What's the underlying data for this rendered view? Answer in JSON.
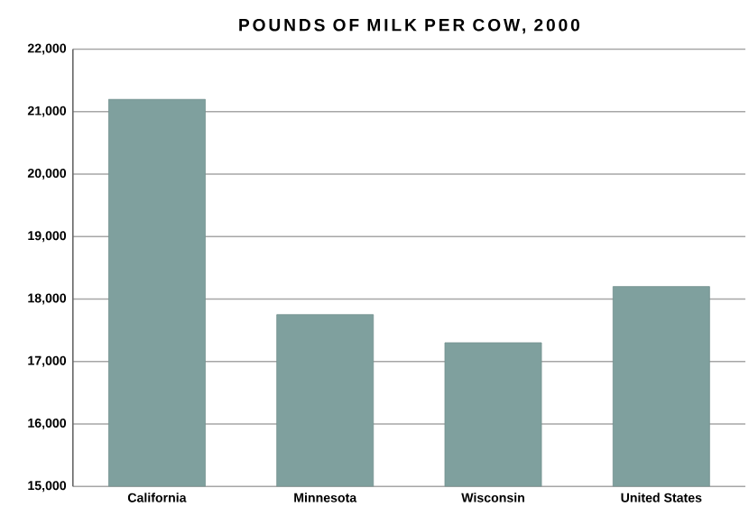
{
  "chart_data": {
    "type": "bar",
    "title": "POUNDS OF MILK PER COW, 2000",
    "categories": [
      "California",
      "Minnesota",
      "Wisconsin",
      "United States"
    ],
    "values": [
      21200,
      17750,
      17300,
      18200
    ],
    "color": "#7fa09e",
    "ylim": [
      15000,
      22000
    ],
    "yticks": [
      {
        "value": 15000,
        "label": "15,000"
      },
      {
        "value": 16000,
        "label": "16,000"
      },
      {
        "value": 17000,
        "label": "17,000"
      },
      {
        "value": 18000,
        "label": "18,000"
      },
      {
        "value": 19000,
        "label": "19,000"
      },
      {
        "value": 20000,
        "label": "20,000"
      },
      {
        "value": 21000,
        "label": "21,000"
      },
      {
        "value": 22000,
        "label": "22,000"
      }
    ],
    "grid": "y"
  }
}
